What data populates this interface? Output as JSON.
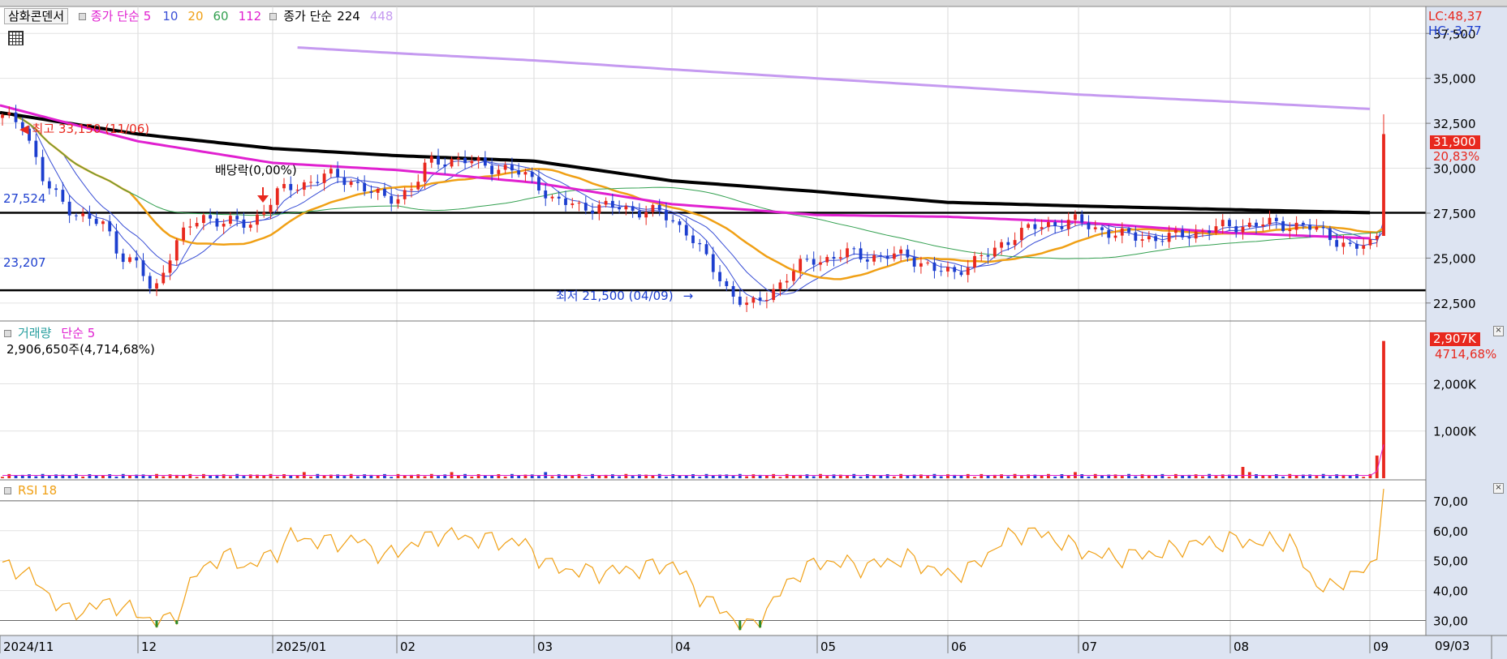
{
  "price_legend": {
    "title": "삼화콘덴서",
    "close_simple": "종가 단순",
    "ma5": "5",
    "ma10": "10",
    "ma20": "20",
    "ma60": "60",
    "ma112": "112",
    "close_simple2": "종가 단순",
    "ma224": "224",
    "ma448": "448"
  },
  "volume_legend": {
    "title": "거래량",
    "ma": "단순 5",
    "value": "2,906,650주(4,714,68%)"
  },
  "rsi_legend": {
    "title": "RSI 18"
  },
  "lc_label": "LC:48,37",
  "hc_label": "HC:-3,77",
  "annotations": {
    "high": "최고 33,150 (11/06)",
    "low": "최저 21,500 (04/09)",
    "dividend": "배당락(0,00%)",
    "hline1": "27,524",
    "hline2": "23,207"
  },
  "current_price": {
    "value": "31,900",
    "change": "20,83%"
  },
  "current_volume": {
    "value": "2,907K",
    "change": "4714,68%"
  },
  "x_labels": [
    "2024/11",
    "12",
    "2025/01",
    "02",
    "03",
    "04",
    "05",
    "06",
    "07",
    "08",
    "09"
  ],
  "x_last_label": "09/03",
  "colors": {
    "up": "#e8281e",
    "down": "#1d3fcf",
    "ma5": "#3a4fd6",
    "ma10": "#3a4fd6",
    "ma20": "#f0a015",
    "ma60": "#33a050",
    "ma112": "#e020d0",
    "ma224": "#000000",
    "ma448": "#c59af0",
    "rsi": "#f0a015",
    "axis_bg": "#dde4f2"
  },
  "chart_data": [
    {
      "type": "line",
      "title": "삼화콘덴서",
      "series": [
        {
          "name": "종가 단순 224",
          "x": [
            "2024/11",
            "2024/12",
            "2025/01",
            "2025/02",
            "2025/03",
            "2025/04",
            "2025/05",
            "2025/06",
            "2025/07",
            "2025/08",
            "2025/09"
          ],
          "values": [
            33100,
            31900,
            31100,
            30700,
            30400,
            29300,
            28700,
            28100,
            27900,
            27700,
            27524
          ]
        },
        {
          "name": "종가 단순 448",
          "x": [
            "2025/01",
            "2025/03",
            "2025/05",
            "2025/07",
            "2025/09"
          ],
          "values": [
            36800,
            36000,
            35000,
            34100,
            33300
          ]
        },
        {
          "name": "112",
          "x": [
            "2024/11",
            "2024/12",
            "2025/01",
            "2025/02",
            "2025/03",
            "2025/04",
            "2025/05",
            "2025/06",
            "2025/07",
            "2025/08",
            "2025/09"
          ],
          "values": [
            33500,
            31500,
            30300,
            29900,
            29200,
            28000,
            27400,
            27300,
            27000,
            26400,
            26100
          ]
        }
      ],
      "y_ticks": [
        "22,500",
        "25,000",
        "27,500",
        "30,000",
        "32,500",
        "35,000",
        "37,500"
      ],
      "ylim": [
        21500,
        39000
      ],
      "horizontal_lines": [
        27524,
        23207
      ],
      "last_close": 31900
    },
    {
      "type": "bar",
      "title": "거래량",
      "y_ticks": [
        "1,000K",
        "2,000K"
      ],
      "last_value_k": 2907
    },
    {
      "type": "line",
      "title": "RSI 18",
      "y_ticks": [
        "30,00",
        "40,00",
        "50,00",
        "60,00",
        "70,00"
      ],
      "ylim": [
        25,
        77
      ],
      "reference_lines": [
        30,
        70
      ],
      "last_value": 74
    }
  ]
}
